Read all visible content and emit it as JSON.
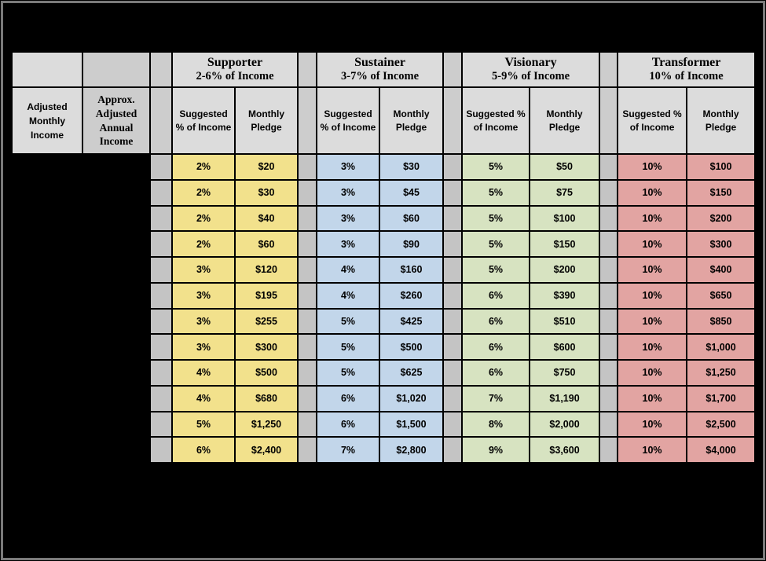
{
  "page": {
    "background_color": "#000000",
    "frame_color": "#7a7a7a"
  },
  "table": {
    "income_columns": [
      {
        "label": "Adjusted Monthly Income"
      },
      {
        "label": "Approx. Adjusted Annual Income"
      }
    ],
    "tiers": [
      {
        "name": "Supporter",
        "range": "2-6% of Income",
        "color": "#f2e18c"
      },
      {
        "name": "Sustainer",
        "range": "3-7% of Income",
        "color": "#c2d6ea"
      },
      {
        "name": "Visionary",
        "range": "5-9% of Income",
        "color": "#d7e3c1"
      },
      {
        "name": "Transformer",
        "range": "10% of Income",
        "color": "#e2a4a2"
      }
    ],
    "subheaders": {
      "pct": "Suggested % of Income",
      "pledge": "Monthly Pledge"
    },
    "rows": [
      [
        "2%",
        "$20",
        "3%",
        "$30",
        "5%",
        "$50",
        "10%",
        "$100"
      ],
      [
        "2%",
        "$30",
        "3%",
        "$45",
        "5%",
        "$75",
        "10%",
        "$150"
      ],
      [
        "2%",
        "$40",
        "3%",
        "$60",
        "5%",
        "$100",
        "10%",
        "$200"
      ],
      [
        "2%",
        "$60",
        "3%",
        "$90",
        "5%",
        "$150",
        "10%",
        "$300"
      ],
      [
        "3%",
        "$120",
        "4%",
        "$160",
        "5%",
        "$200",
        "10%",
        "$400"
      ],
      [
        "3%",
        "$195",
        "4%",
        "$260",
        "6%",
        "$390",
        "10%",
        "$650"
      ],
      [
        "3%",
        "$255",
        "5%",
        "$425",
        "6%",
        "$510",
        "10%",
        "$850"
      ],
      [
        "3%",
        "$300",
        "5%",
        "$500",
        "6%",
        "$600",
        "10%",
        "$1,000"
      ],
      [
        "4%",
        "$500",
        "5%",
        "$625",
        "6%",
        "$750",
        "10%",
        "$1,250"
      ],
      [
        "4%",
        "$680",
        "6%",
        "$1,020",
        "7%",
        "$1,190",
        "10%",
        "$1,700"
      ],
      [
        "5%",
        "$1,250",
        "6%",
        "$1,500",
        "8%",
        "$2,000",
        "10%",
        "$2,500"
      ],
      [
        "6%",
        "$2,400",
        "7%",
        "$2,800",
        "9%",
        "$3,600",
        "10%",
        "$4,000"
      ]
    ]
  }
}
